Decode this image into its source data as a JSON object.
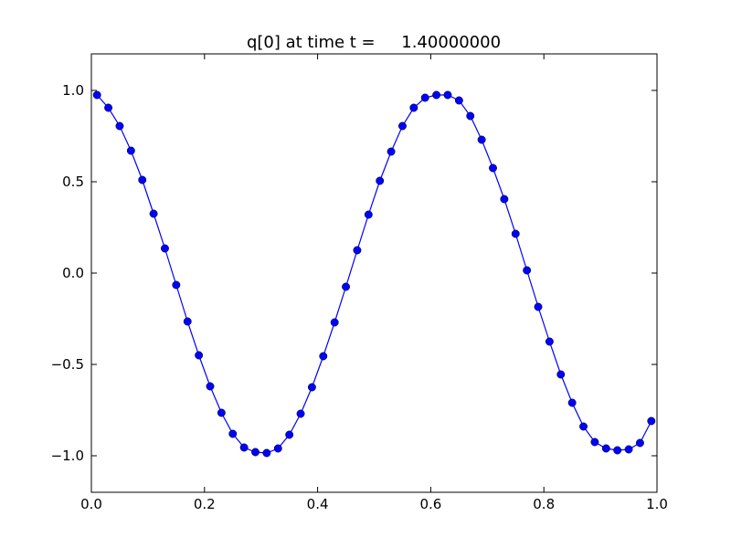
{
  "chart_data": {
    "type": "line",
    "title": "q[0] at time t =     1.40000000",
    "x": [
      0.01,
      0.03,
      0.05,
      0.07,
      0.09,
      0.11,
      0.13,
      0.15,
      0.17,
      0.19,
      0.21,
      0.23,
      0.25,
      0.27,
      0.29,
      0.31,
      0.33,
      0.35,
      0.37,
      0.39,
      0.41,
      0.43,
      0.45,
      0.47,
      0.49,
      0.51,
      0.53,
      0.55,
      0.57,
      0.59,
      0.61,
      0.63,
      0.65,
      0.67,
      0.69,
      0.71,
      0.73,
      0.75,
      0.77,
      0.79,
      0.81,
      0.83,
      0.85,
      0.87,
      0.89,
      0.91,
      0.93,
      0.95,
      0.97,
      0.99
    ],
    "series": [
      {
        "color": "#0000ff",
        "values": [
          0.975,
          0.905,
          0.805,
          0.67,
          0.51,
          0.325,
          0.135,
          -0.065,
          -0.265,
          -0.45,
          -0.62,
          -0.765,
          -0.88,
          -0.955,
          -0.98,
          -0.985,
          -0.96,
          -0.885,
          -0.77,
          -0.625,
          -0.455,
          -0.27,
          -0.075,
          0.125,
          0.32,
          0.505,
          0.665,
          0.805,
          0.905,
          0.96,
          0.975,
          0.975,
          0.945,
          0.86,
          0.73,
          0.575,
          0.405,
          0.215,
          0.015,
          -0.185,
          -0.375,
          -0.555,
          -0.71,
          -0.84,
          -0.925,
          -0.96,
          -0.97,
          -0.965,
          -0.93,
          -0.81
        ]
      }
    ],
    "xlim": [
      0,
      1
    ],
    "ylim": [
      -1.2,
      1.2
    ],
    "xticks": [
      {
        "value": 0,
        "label": "0.0"
      },
      0.2,
      0.4,
      0.6,
      0.8,
      {
        "value": 1,
        "label": "1.0"
      }
    ],
    "yticks": [
      {
        "value": -1,
        "label": "−1.0"
      },
      {
        "value": -0.5,
        "label": "−0.5"
      },
      {
        "value": 0,
        "label": "0.0"
      },
      0.5,
      {
        "value": 1,
        "label": "1.0"
      }
    ],
    "grid": false
  }
}
